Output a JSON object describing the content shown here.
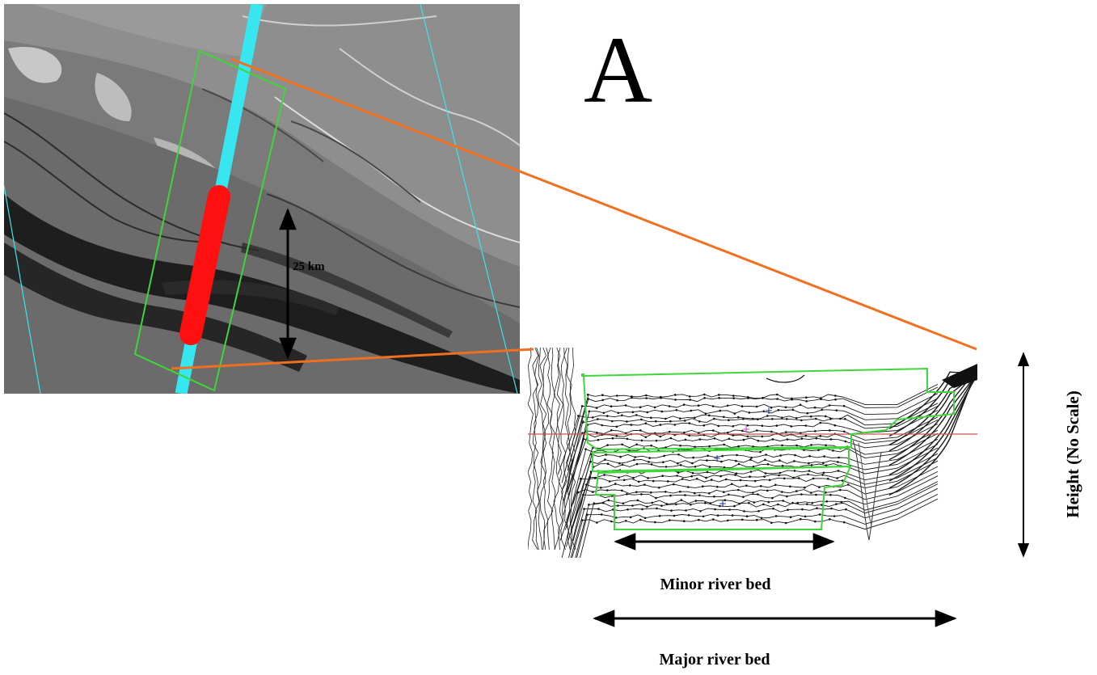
{
  "figure": {
    "panel_letter": "A",
    "scale_bar_label": "25 km",
    "y_axis_label": "Height (No Scale)",
    "minor_bed_label": "Minor river bed",
    "major_bed_label": "Major river bed"
  },
  "colors": {
    "track_cyan": "#38e6f0",
    "selection_red": "#ff1010",
    "box_green": "#3fd63a",
    "leader_orange": "#f07020",
    "reference_line_red": "#d05050",
    "sar_background": "#7a7a7a",
    "river_dark": "#1e1e1e"
  },
  "icons": {
    "scale_arrow": "double-headed-arrow",
    "height_arrow": "double-headed-arrow",
    "bed_arrows": "double-headed-arrow"
  }
}
